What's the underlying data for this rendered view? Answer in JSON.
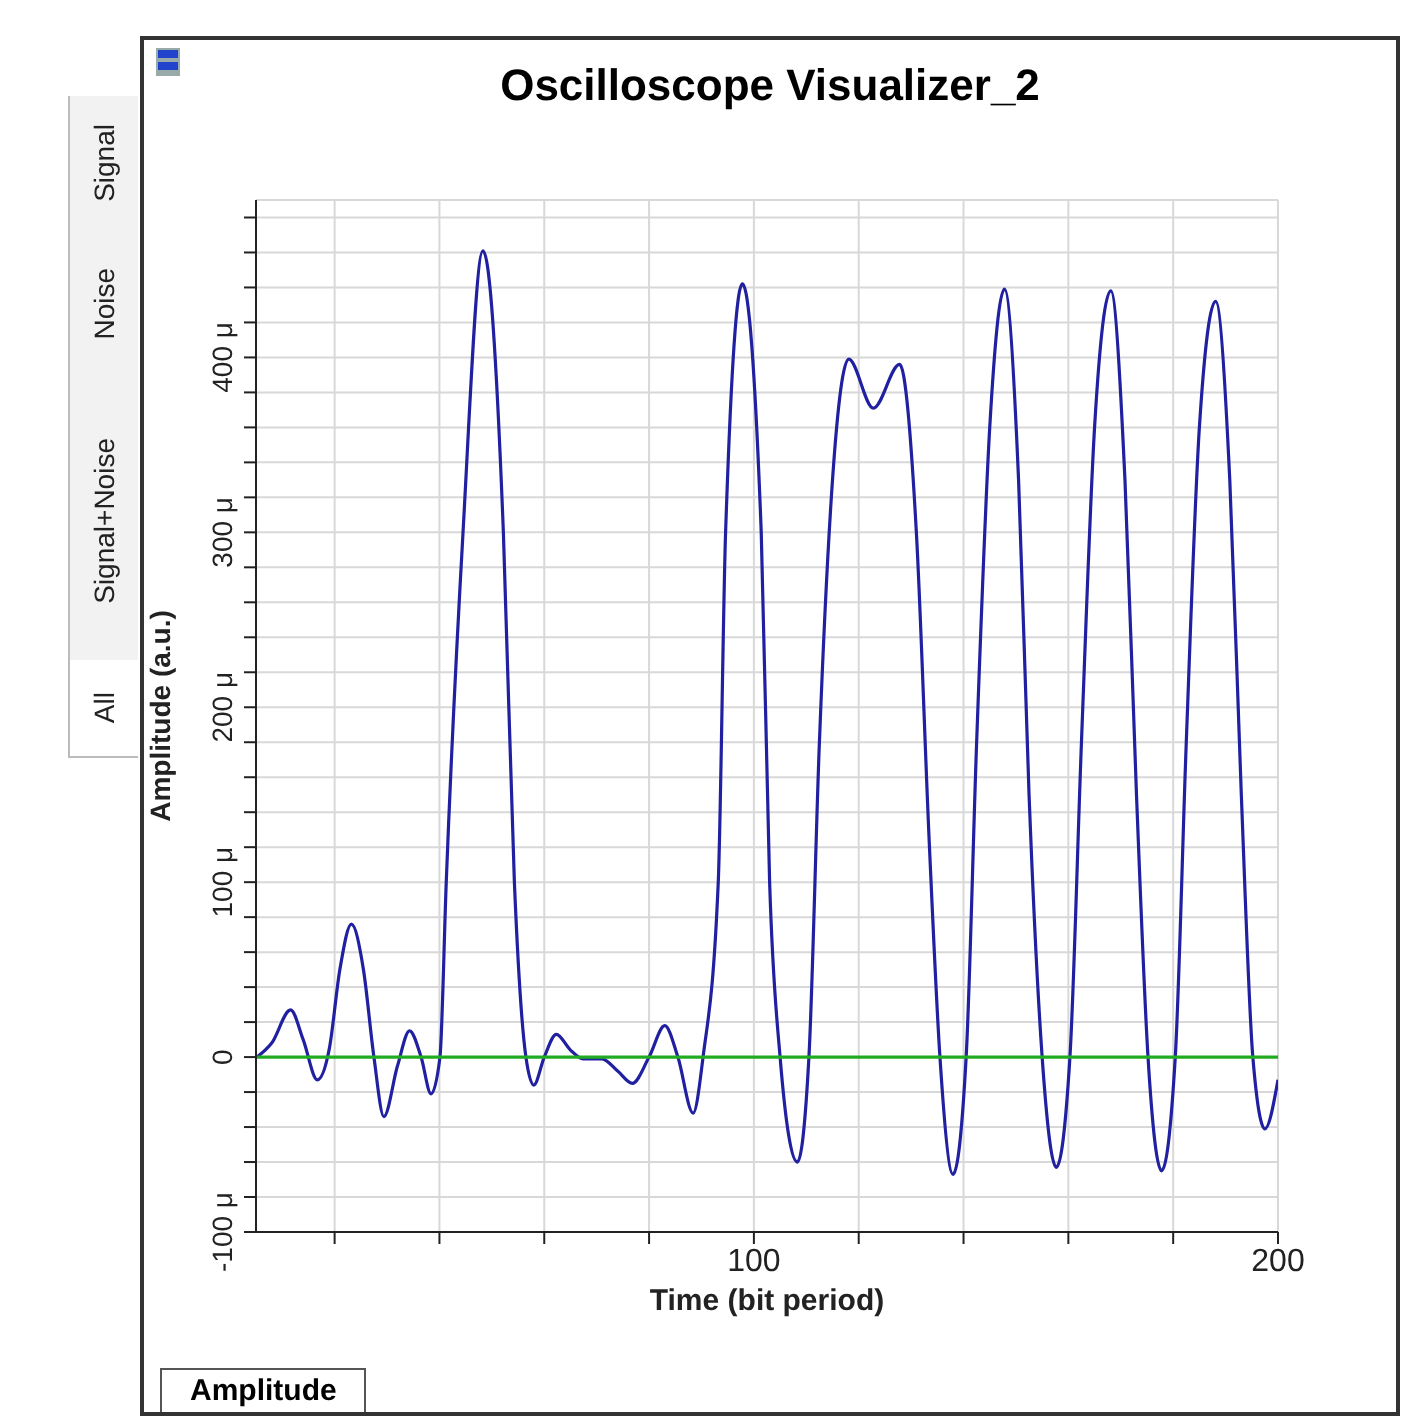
{
  "chart_data": {
    "type": "line",
    "title": "Oscilloscope Visualizer_2",
    "xlabel": "Time (bit period)",
    "ylabel": "Amplitude (a.u.)",
    "annotations": [
      "Signal",
      "Noise",
      "Signal+Noise",
      "All",
      "Amplitude"
    ],
    "xlim": [
      5,
      200
    ],
    "xticks": [
      {
        "value": 20,
        "label": null
      },
      {
        "value": 40,
        "label": null
      },
      {
        "value": 60,
        "label": null
      },
      {
        "value": 80,
        "label": null
      },
      100,
      {
        "value": 120,
        "label": null
      },
      {
        "value": 140,
        "label": null
      },
      {
        "value": 160,
        "label": null
      },
      {
        "value": 180,
        "label": null
      },
      200
    ],
    "ylim": [
      -100,
      490
    ],
    "yticks": [
      {
        "value": -100,
        "label": "-100 μ"
      },
      {
        "value": -80,
        "label": null
      },
      {
        "value": -60,
        "label": null
      },
      {
        "value": -40,
        "label": null
      },
      {
        "value": -20,
        "label": null
      },
      0,
      {
        "value": 20,
        "label": null
      },
      {
        "value": 40,
        "label": null
      },
      {
        "value": 60,
        "label": null
      },
      {
        "value": 80,
        "label": null
      },
      {
        "value": 100,
        "label": "100 μ"
      },
      {
        "value": 120,
        "label": null
      },
      {
        "value": 140,
        "label": null
      },
      {
        "value": 160,
        "label": null
      },
      {
        "value": 180,
        "label": null
      },
      {
        "value": 200,
        "label": "200 μ"
      },
      {
        "value": 220,
        "label": null
      },
      {
        "value": 240,
        "label": null
      },
      {
        "value": 260,
        "label": null
      },
      {
        "value": 280,
        "label": null
      },
      {
        "value": 300,
        "label": "300 μ"
      },
      {
        "value": 320,
        "label": null
      },
      {
        "value": 340,
        "label": null
      },
      {
        "value": 360,
        "label": null
      },
      {
        "value": 380,
        "label": null
      },
      {
        "value": 400,
        "label": "400 μ"
      },
      {
        "value": 420,
        "label": null
      },
      {
        "value": 440,
        "label": null
      },
      {
        "value": 460,
        "label": null
      },
      {
        "value": 480,
        "label": null
      }
    ],
    "grid": true,
    "series": [
      {
        "color": "#2020a0",
        "x": [
          5.2,
          8,
          11.6,
          14,
          16.7,
          19,
          21,
          23.2,
          25.5,
          27.5,
          29.4,
          32,
          34.3,
          36.5,
          38.4,
          40.1,
          41.3,
          44.5,
          48.3,
          52.2,
          54.3,
          56.5,
          58,
          60,
          62.3,
          65,
          67.4,
          71,
          74,
          76.8,
          80,
          83,
          85.5,
          88.4,
          90.3,
          93.2,
          94.6,
          97.8,
          101.4,
          103,
          105,
          108.3,
          110.5,
          112.5,
          115,
          118.1,
          122.8,
          127.8,
          131,
          133.5,
          135.5,
          138,
          140.5,
          142.5,
          145,
          147.8,
          150.5,
          152.5,
          155,
          157.7,
          160.3,
          162.5,
          165,
          168.1,
          170.8,
          173,
          175.2,
          177.8,
          180.4,
          182.5,
          185,
          188.1,
          190.8,
          193,
          195.2,
          197.5,
          200
        ],
        "values": [
          0,
          8,
          27,
          10,
          -13,
          5,
          50,
          76,
          50,
          0,
          -34,
          -5,
          15,
          0,
          -21,
          0,
          100,
          300,
          461,
          300,
          100,
          0,
          -16,
          0,
          13,
          4,
          -1,
          -1,
          -8,
          -15,
          0,
          18,
          0,
          -32,
          0,
          100,
          300,
          442,
          300,
          100,
          0,
          -60,
          0,
          180,
          330,
          399,
          371,
          396,
          300,
          120,
          0,
          -67,
          0,
          180,
          360,
          439,
          330,
          150,
          0,
          -63,
          0,
          180,
          360,
          438,
          330,
          150,
          0,
          -65,
          0,
          180,
          360,
          432,
          330,
          150,
          0,
          -41,
          -13
        ]
      },
      {
        "color": "#22aa22",
        "x": [
          5.2,
          200
        ],
        "values": [
          0,
          0
        ]
      }
    ]
  }
}
